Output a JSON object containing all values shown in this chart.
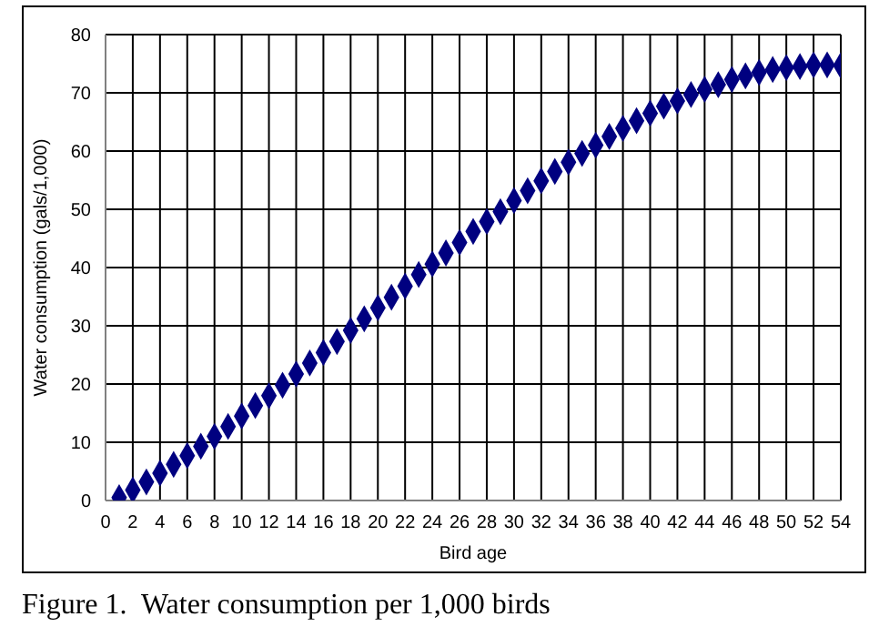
{
  "chart_data": {
    "type": "scatter",
    "xlabel": "Bird age",
    "ylabel": "Water consumption (gals/1,000)",
    "annotations": [
      "Figure 1.  Water consumption per 1,000 birds"
    ],
    "x": [
      1,
      2,
      3,
      4,
      5,
      6,
      7,
      8,
      9,
      10,
      11,
      12,
      13,
      14,
      15,
      16,
      17,
      18,
      19,
      20,
      21,
      22,
      23,
      24,
      25,
      26,
      27,
      28,
      29,
      30,
      31,
      32,
      33,
      34,
      35,
      36,
      37,
      38,
      39,
      40,
      41,
      42,
      43,
      44,
      45,
      46,
      47,
      48,
      49,
      50,
      51,
      52,
      53,
      54
    ],
    "series": [
      {
        "color": "#000080",
        "values": [
          0.5,
          1.8,
          3.2,
          4.7,
          6.2,
          7.7,
          9.3,
          11.0,
          12.7,
          14.5,
          16.3,
          18.0,
          19.8,
          21.7,
          23.6,
          25.4,
          27.3,
          29.2,
          31.2,
          33.1,
          34.9,
          36.8,
          38.8,
          40.6,
          42.5,
          44.3,
          46.2,
          47.9,
          49.6,
          51.5,
          53.2,
          54.9,
          56.5,
          58.1,
          59.6,
          61.0,
          62.5,
          63.9,
          65.2,
          66.5,
          67.7,
          68.6,
          69.7,
          70.6,
          71.4,
          72.3,
          72.9,
          73.5,
          74.0,
          74.3,
          74.5,
          74.8,
          74.8,
          74.7
        ]
      }
    ],
    "xlim": [
      0,
      54
    ],
    "xticks": [
      0,
      2,
      4,
      6,
      8,
      10,
      12,
      14,
      16,
      18,
      20,
      22,
      24,
      26,
      28,
      30,
      32,
      34,
      36,
      38,
      40,
      42,
      44,
      46,
      48,
      50,
      52,
      54
    ],
    "ylim": [
      0,
      80
    ],
    "yticks": [
      0,
      10,
      20,
      30,
      40,
      50,
      60,
      70,
      80
    ],
    "grid": true,
    "marker": "diamond"
  }
}
